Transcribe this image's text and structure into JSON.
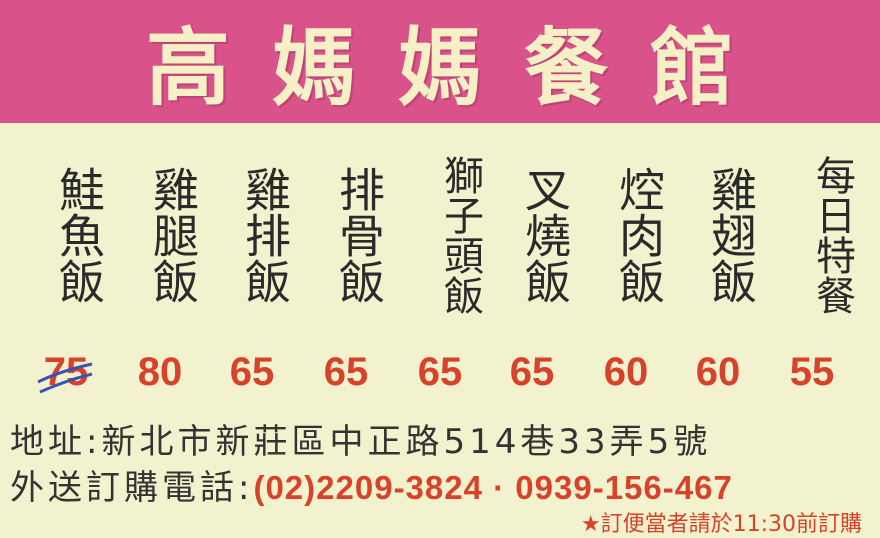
{
  "restaurant_name": "高媽媽餐館",
  "menu": [
    {
      "name": "鮭魚飯",
      "price": "75"
    },
    {
      "name": "雞腿飯",
      "price": "80"
    },
    {
      "name": "雞排飯",
      "price": "65"
    },
    {
      "name": "排骨飯",
      "price": "65"
    },
    {
      "name": "獅子頭飯",
      "price": "65"
    },
    {
      "name": "叉燒飯",
      "price": "65"
    },
    {
      "name": "焢肉飯",
      "price": "60"
    },
    {
      "name": "雞翅飯",
      "price": "60"
    },
    {
      "name": "每日特餐",
      "price": "55"
    }
  ],
  "address": "地址:新北市新莊區中正路514巷33弄5號",
  "phone_label": "外送訂購電話:",
  "phone_numbers": "(02)2209-3824 · 0939-156-467",
  "order_note": "★訂便當者請於11:30前訂購",
  "colors": {
    "header_bg": "#d9528a",
    "body_bg": "#f3f2cf",
    "price_red": "#d8422a",
    "strike_blue": "#3a52b4"
  }
}
